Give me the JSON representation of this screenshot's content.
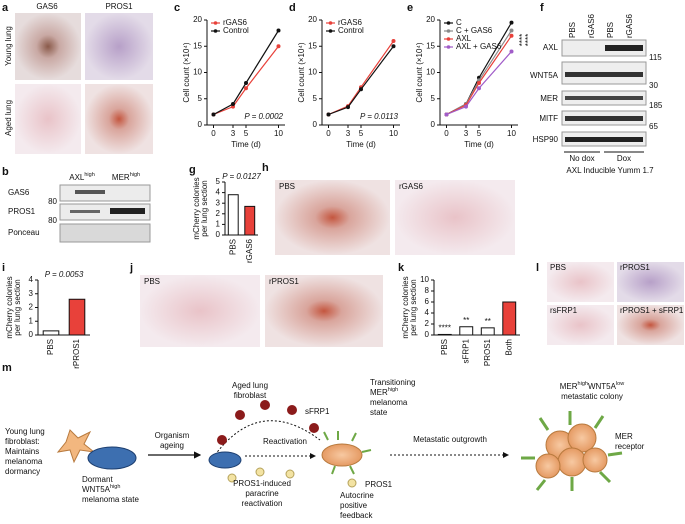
{
  "chart_data": [
    {
      "panel": "c",
      "type": "line",
      "xlabel": "Time (d)",
      "ylabel": "Cell count (×10⁴)",
      "x": [
        0,
        3,
        5,
        10
      ],
      "xlim": [
        -1,
        11
      ],
      "xticks": [
        0,
        3,
        5,
        10
      ],
      "ylim": [
        0,
        20
      ],
      "yticks": [
        0,
        5,
        10,
        15,
        20
      ],
      "legend": "upper left",
      "annotations": [
        "P = 0.0002"
      ],
      "series": [
        {
          "name": "rGAS6",
          "color": "#e8413a",
          "values": [
            2,
            3.5,
            7,
            15
          ]
        },
        {
          "name": "Control",
          "color": "#111111",
          "values": [
            2,
            4,
            8,
            18
          ]
        }
      ]
    },
    {
      "panel": "d",
      "type": "line",
      "xlabel": "Time (d)",
      "ylabel": "Cell count (×10⁴)",
      "x": [
        0,
        3,
        5,
        10
      ],
      "xlim": [
        -1,
        11
      ],
      "xticks": [
        0,
        3,
        5,
        10
      ],
      "ylim": [
        0,
        20
      ],
      "yticks": [
        0,
        5,
        10,
        15,
        20
      ],
      "legend": "upper left",
      "annotations": [
        "P = 0.0113"
      ],
      "series": [
        {
          "name": "rGAS6",
          "color": "#e8413a",
          "values": [
            2,
            3.6,
            7.2,
            16
          ]
        },
        {
          "name": "Control",
          "color": "#111111",
          "values": [
            2,
            3.4,
            6.8,
            15
          ]
        }
      ]
    },
    {
      "panel": "e",
      "type": "line",
      "xlabel": "Time (d)",
      "ylabel": "Cell count (×10⁴)",
      "x": [
        0,
        3,
        5,
        10
      ],
      "xlim": [
        -1,
        11
      ],
      "xticks": [
        0,
        3,
        5,
        10
      ],
      "ylim": [
        0,
        20
      ],
      "yticks": [
        0,
        5,
        10,
        15,
        20
      ],
      "legend": "upper left",
      "annotations": [
        "****",
        "****"
      ],
      "series": [
        {
          "name": "C",
          "color": "#111111",
          "values": [
            2,
            4,
            9,
            19.5
          ]
        },
        {
          "name": "C + GAS6",
          "color": "#8a8a8a",
          "values": [
            2,
            4,
            8.5,
            18
          ]
        },
        {
          "name": "AXL",
          "color": "#e8413a",
          "values": [
            2,
            3.8,
            8,
            17
          ]
        },
        {
          "name": "AXL + GAS6",
          "color": "#a05cc8",
          "values": [
            2,
            3.5,
            7,
            14
          ]
        }
      ]
    },
    {
      "panel": "g",
      "type": "bar",
      "ylabel": [
        "mCherry colonies",
        "per lung section"
      ],
      "categories": [
        "PBS",
        "rGAS6"
      ],
      "values": [
        3.8,
        2.7
      ],
      "colors": [
        "#ffffff",
        "#e8413a"
      ],
      "ylim": [
        0,
        5
      ],
      "yticks": [
        0,
        1,
        2,
        3,
        4,
        5
      ],
      "annotations": [
        "P = 0.0127"
      ]
    },
    {
      "panel": "i",
      "type": "bar",
      "ylabel": [
        "mCherry colonies",
        "per lung section"
      ],
      "categories": [
        "PBS",
        "rPROS1"
      ],
      "values": [
        0.3,
        2.6
      ],
      "colors": [
        "#ffffff",
        "#e8413a"
      ],
      "ylim": [
        0,
        4
      ],
      "yticks": [
        0,
        1,
        2,
        3,
        4
      ],
      "annotations": [
        "P = 0.0053"
      ]
    },
    {
      "panel": "k",
      "type": "bar",
      "ylabel": [
        "mCherry colonies",
        "per lung section"
      ],
      "categories": [
        "PBS",
        "sFRP1",
        "PROS1",
        "Both"
      ],
      "values": [
        0.1,
        1.5,
        1.3,
        6
      ],
      "colors": [
        "#ffffff",
        "#ffffff",
        "#ffffff",
        "#e8413a"
      ],
      "ylim": [
        0,
        10
      ],
      "yticks": [
        0,
        2,
        4,
        6,
        8,
        10
      ],
      "annotations": [
        "****",
        "**",
        "**"
      ]
    }
  ],
  "figure": {
    "a": {
      "panel": "a",
      "columns": [
        "GAS6",
        "PROS1"
      ],
      "rows": [
        "Young lung",
        "Aged lung"
      ]
    },
    "b": {
      "panel": "b",
      "lanes": [
        [
          "AXL",
          "high"
        ],
        [
          "MER",
          "high"
        ]
      ],
      "bands": [
        "GAS6",
        "PROS1",
        "Ponceau"
      ],
      "markers": [
        "80",
        "80"
      ]
    },
    "f": {
      "panel": "f",
      "lanes": [
        "PBS",
        "rGAS6",
        "PBS",
        "rGAS6"
      ],
      "bands": [
        "AXL",
        "WNT5A",
        "MER",
        "MITF",
        "HSP90"
      ],
      "markers": [
        "115",
        "30",
        "185",
        "65"
      ],
      "groups": [
        "No dox",
        "Dox"
      ],
      "caption": "AXL Inducible Yumm 1.7"
    },
    "h": {
      "panel": "h",
      "images": [
        "PBS",
        "rGAS6"
      ]
    },
    "j": {
      "panel": "j",
      "images": [
        "PBS",
        "rPROS1"
      ]
    },
    "l": {
      "panel": "l",
      "images": [
        "PBS",
        "rPROS1",
        "rsFRP1",
        "rPROS1 + sFRP1"
      ]
    },
    "m": {
      "panel": "m",
      "young": [
        "Young lung",
        "fibroblast:",
        "Maintains",
        "melanoma",
        "dormancy"
      ],
      "dormant": [
        "Dormant",
        [
          "WNT5A",
          "high"
        ],
        "melanoma state"
      ],
      "ageing": [
        "Organism",
        "ageing"
      ],
      "aged": [
        "Aged lung",
        "fibroblast"
      ],
      "sfrp1": "sFRP1",
      "reactivation": "Reactivation",
      "pros1_induced": [
        "PROS1-induced",
        "paracrine",
        "reactivation"
      ],
      "transitioning": [
        "Transitioning",
        [
          "MER",
          "high"
        ],
        "melanoma",
        "state"
      ],
      "pros1": "PROS1",
      "autocrine": [
        "Autocrine",
        "positive",
        "feedback"
      ],
      "outgrowth": "Metastatic outgrowth",
      "colony": [
        [
          "MER",
          "high",
          "WNT5A",
          "low"
        ],
        "metastatic colony"
      ],
      "mer": [
        "MER",
        "receptor"
      ]
    }
  }
}
